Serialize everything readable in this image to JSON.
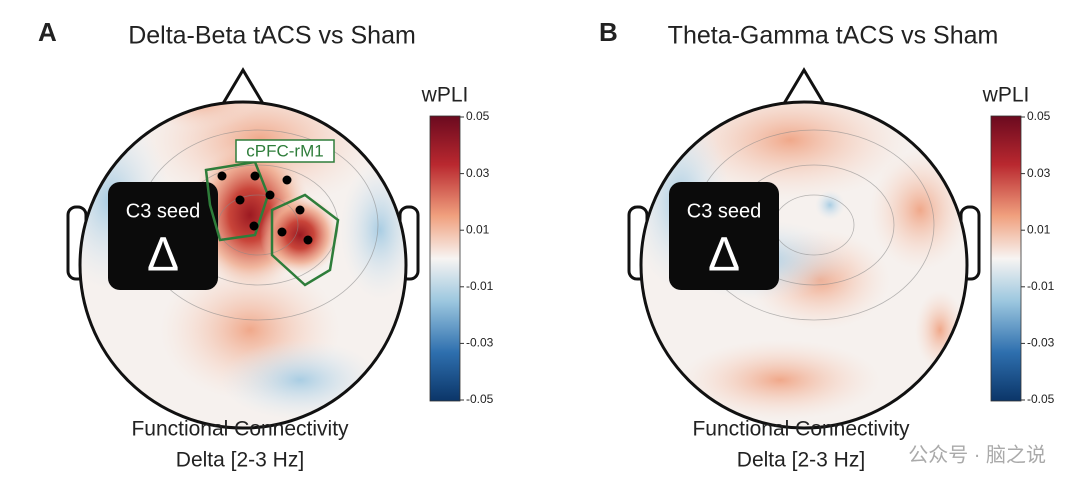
{
  "panels": [
    {
      "label": "A",
      "title": "Delta-Beta tACS vs Sham",
      "seed": "C3 seed",
      "seed_symbol": "Δ",
      "region": "cPFC-rM1",
      "colorbar": {
        "label": "wPLI",
        "ticks": [
          "0.05",
          "0.03",
          "0.01",
          "-0.01",
          "-0.03",
          "-0.05"
        ]
      },
      "caption": [
        "Functional Connectivity",
        "Delta [2-3 Hz]"
      ]
    },
    {
      "label": "B",
      "title": "Theta-Gamma tACS vs Sham",
      "seed": "C3 seed",
      "seed_symbol": "Δ",
      "colorbar": {
        "label": "wPLI",
        "ticks": [
          "0.05",
          "0.03",
          "0.01",
          "-0.01",
          "-0.03",
          "-0.05"
        ]
      },
      "caption": [
        "Functional Connectivity",
        "Delta [2-3 Hz]"
      ]
    }
  ],
  "watermark": "公众号 · 脑之说"
}
